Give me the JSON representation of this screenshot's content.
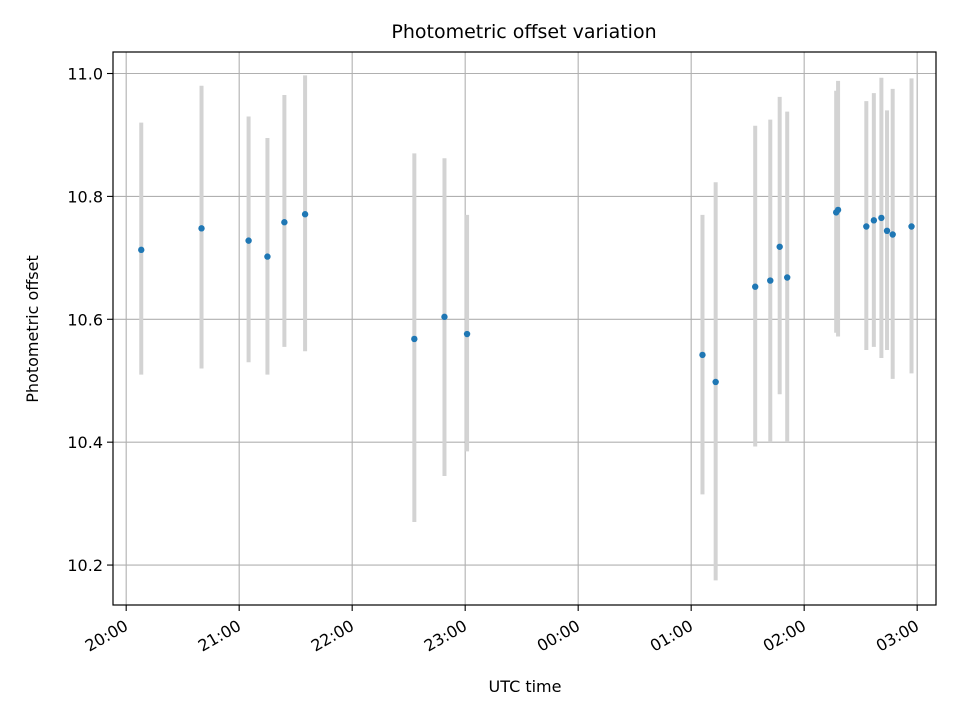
{
  "chart_data": {
    "type": "scatter",
    "title": "Photometric offset variation",
    "xlabel": "UTC time",
    "ylabel": "Photometric offset",
    "grid": true,
    "legend": "none",
    "x_ticks": [
      "20:00",
      "21:00",
      "22:00",
      "23:00",
      "00:00",
      "01:00",
      "02:00",
      "03:00"
    ],
    "y_ticks": [
      "10.2",
      "10.4",
      "10.6",
      "10.8",
      "11.0"
    ],
    "x_range": [
      "19:53",
      "03:10"
    ],
    "y_range": [
      10.135,
      11.035
    ],
    "colors": {
      "point": "#1f77b4",
      "errorbar": "#d3d3d3",
      "grid": "#b0b0b0"
    },
    "points": [
      {
        "time": "20:08",
        "y": 10.713,
        "low": 10.51,
        "high": 10.92
      },
      {
        "time": "20:40",
        "y": 10.748,
        "low": 10.52,
        "high": 10.98
      },
      {
        "time": "21:05",
        "y": 10.728,
        "low": 10.53,
        "high": 10.93
      },
      {
        "time": "21:15",
        "y": 10.702,
        "low": 10.51,
        "high": 10.895
      },
      {
        "time": "21:24",
        "y": 10.758,
        "low": 10.555,
        "high": 10.965
      },
      {
        "time": "21:35",
        "y": 10.771,
        "low": 10.548,
        "high": 10.997
      },
      {
        "time": "22:33",
        "y": 10.568,
        "low": 10.27,
        "high": 10.87
      },
      {
        "time": "22:49",
        "y": 10.604,
        "low": 10.345,
        "high": 10.862
      },
      {
        "time": "23:01",
        "y": 10.576,
        "low": 10.385,
        "high": 10.77
      },
      {
        "time": "01:06",
        "y": 10.542,
        "low": 10.315,
        "high": 10.77
      },
      {
        "time": "01:13",
        "y": 10.498,
        "low": 10.175,
        "high": 10.823
      },
      {
        "time": "01:34",
        "y": 10.653,
        "low": 10.393,
        "high": 10.915
      },
      {
        "time": "01:42",
        "y": 10.663,
        "low": 10.4,
        "high": 10.925
      },
      {
        "time": "01:47",
        "y": 10.718,
        "low": 10.478,
        "high": 10.962
      },
      {
        "time": "01:51",
        "y": 10.668,
        "low": 10.4,
        "high": 10.938
      },
      {
        "time": "02:17",
        "y": 10.774,
        "low": 10.578,
        "high": 10.972
      },
      {
        "time": "02:18",
        "y": 10.778,
        "low": 10.572,
        "high": 10.988
      },
      {
        "time": "02:33",
        "y": 10.751,
        "low": 10.55,
        "high": 10.955
      },
      {
        "time": "02:37",
        "y": 10.761,
        "low": 10.555,
        "high": 10.968
      },
      {
        "time": "02:41",
        "y": 10.765,
        "low": 10.537,
        "high": 10.993
      },
      {
        "time": "02:44",
        "y": 10.744,
        "low": 10.55,
        "high": 10.94
      },
      {
        "time": "02:47",
        "y": 10.738,
        "low": 10.503,
        "high": 10.975
      },
      {
        "time": "02:57",
        "y": 10.751,
        "low": 10.512,
        "high": 10.992
      }
    ]
  }
}
